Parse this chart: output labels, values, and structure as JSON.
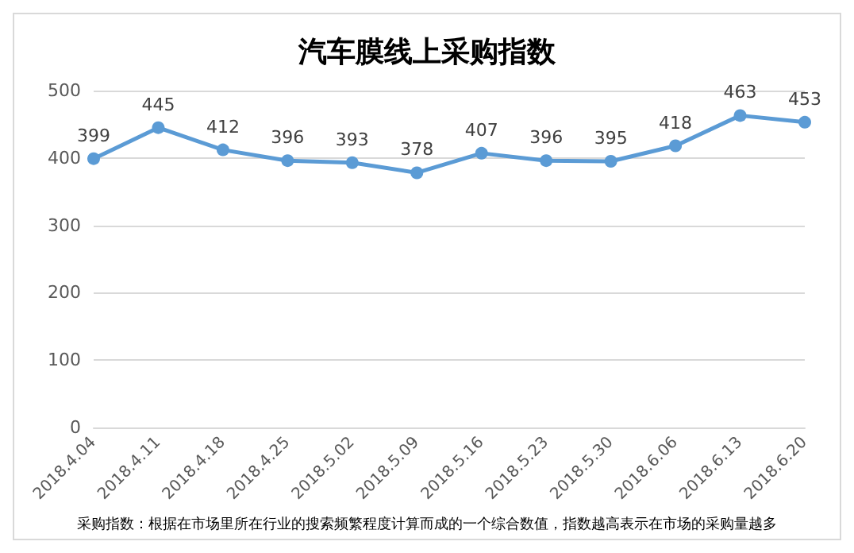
{
  "chart_data": {
    "type": "line",
    "title": "汽车膜线上采购指数",
    "categories": [
      "2018.4.04",
      "2018.4.11",
      "2018.4.18",
      "2018.4.25",
      "2018.5.02",
      "2018.5.09",
      "2018.5.16",
      "2018.5.23",
      "2018.5.30",
      "2018.6.06",
      "2018.6.13",
      "2018.6.20"
    ],
    "series": [
      {
        "color": "#5b9bd5",
        "values": [
          399,
          445,
          412,
          396,
          393,
          378,
          407,
          396,
          395,
          418,
          463,
          453
        ]
      }
    ],
    "ylim": [
      0,
      500
    ],
    "yticks": [
      0,
      100,
      200,
      300,
      400,
      500
    ],
    "grid": "y",
    "marker": "circle",
    "line_style": "solid",
    "data_labels": true,
    "annotations": [
      "采购指数：根据在市场里所在行业的搜索频繁程度计算而成的一个综合数值，指数越高表示在市场的采购量越多"
    ]
  }
}
